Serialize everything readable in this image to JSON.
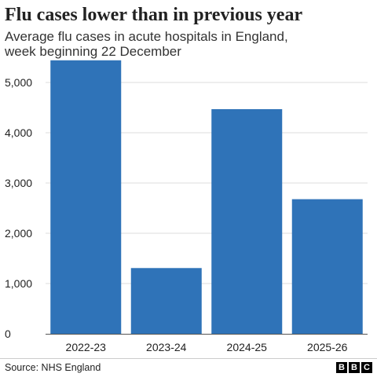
{
  "chart_data": {
    "type": "bar",
    "title": "Flu cases lower than in previous year",
    "subtitle": "Average flu cases in acute hospitals in England, week beginning 22 December",
    "categories": [
      "2022-23",
      "2023-24",
      "2024-25",
      "2025-26"
    ],
    "values": [
      5441,
      1308,
      4469,
      2678
    ],
    "xlabel": "",
    "ylabel": "",
    "ylim": [
      0,
      5500
    ],
    "yticks": [
      0,
      1000,
      2000,
      3000,
      4000,
      5000
    ],
    "ytick_labels": [
      "0",
      "1,000",
      "2,000",
      "3,000",
      "4,000",
      "5,000"
    ],
    "grid": true,
    "bar_color": "#2f73b8",
    "grid_color": "#dddddd"
  },
  "footer": {
    "source": "Source: NHS England",
    "logo_letters": [
      "B",
      "B",
      "C"
    ]
  }
}
